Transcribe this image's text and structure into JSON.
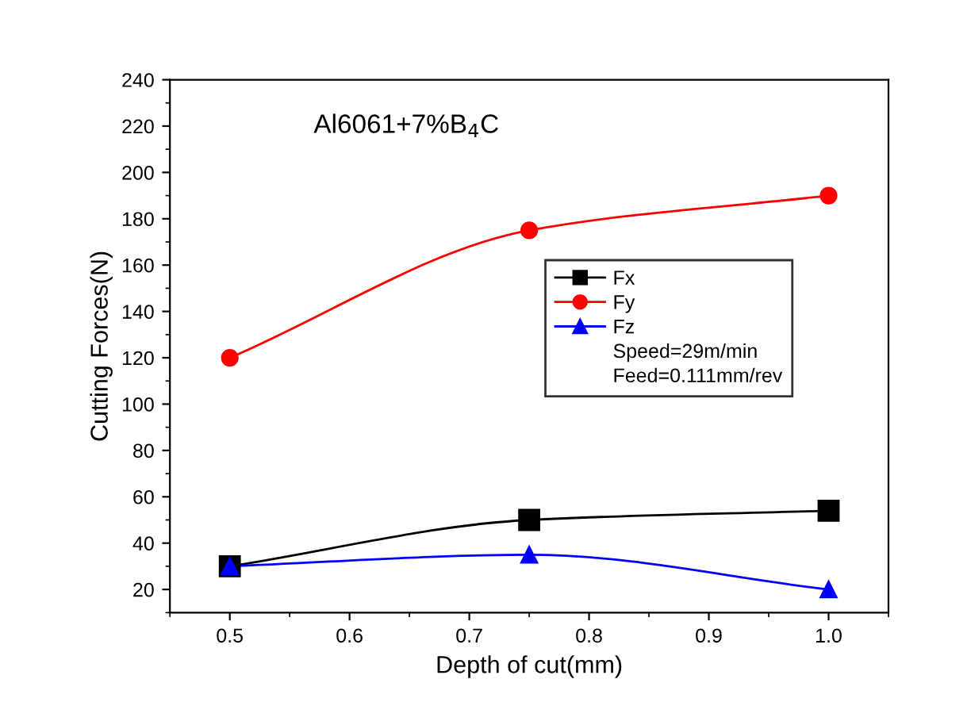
{
  "chart_data": {
    "type": "line",
    "xlabel": "Depth of cut(mm)",
    "ylabel": "Cutting Forces(N)",
    "x": [
      0.5,
      0.75,
      1.0
    ],
    "series": [
      {
        "name": "Fx",
        "color": "#000000",
        "marker": "square",
        "values": [
          30,
          50,
          54
        ]
      },
      {
        "name": "Fy",
        "color": "#ff0000",
        "marker": "circle",
        "values": [
          120,
          175,
          190
        ]
      },
      {
        "name": "Fz",
        "color": "#0000ff",
        "marker": "triangle",
        "values": [
          30,
          35,
          20
        ]
      }
    ],
    "annotations": [
      "Al6061+7%B$_{4}$C",
      "Speed=29m/min",
      "Feed=0.111mm/rev"
    ],
    "xlim": [
      0.45,
      1.05
    ],
    "xticks": [
      0.5,
      0.6,
      0.7,
      0.8,
      0.9,
      {
        "value": 1.0,
        "label": "1.0"
      }
    ],
    "ylim": [
      10,
      240
    ],
    "yticks": [
      20,
      40,
      60,
      80,
      100,
      120,
      140,
      160,
      180,
      200,
      220,
      240
    ],
    "grid": false,
    "legend": "top right",
    "line_style": "solid"
  }
}
